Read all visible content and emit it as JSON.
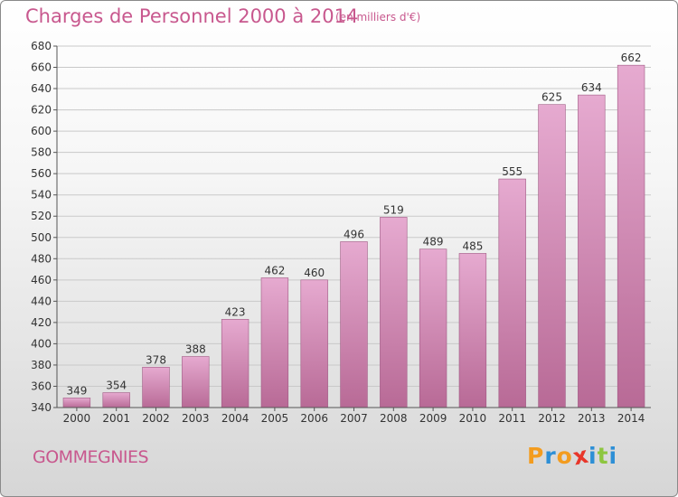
{
  "header": {
    "title": "Charges de Personnel 2000 à 2014",
    "subtitle": "(en milliers d'€)"
  },
  "footer": {
    "commune": "GOMMEGNIES",
    "logo": {
      "letters": [
        "P",
        "r",
        "o",
        "x",
        "i",
        "t",
        "i"
      ],
      "colors": [
        "#f39c1f",
        "#2d8fd6",
        "#f39c1f",
        "#e8362a",
        "#2d8fd6",
        "#8dc63f",
        "#2d8fd6"
      ]
    }
  },
  "colors": {
    "bar_light": "#e6aad0",
    "bar_dark": "#b86a96",
    "bar_edge": "#a05a84",
    "accent": "#c8588e"
  },
  "chart_data": {
    "type": "bar",
    "title": "Charges de Personnel 2000 à 2014",
    "subtitle": "(en milliers d'€)",
    "categories": [
      "2000",
      "2001",
      "2002",
      "2003",
      "2004",
      "2005",
      "2006",
      "2007",
      "2008",
      "2009",
      "2010",
      "2011",
      "2012",
      "2013",
      "2014"
    ],
    "values": [
      349,
      354,
      378,
      388,
      423,
      462,
      460,
      496,
      519,
      489,
      485,
      555,
      625,
      634,
      662
    ],
    "ylim": [
      340,
      680
    ],
    "yticks": [
      340,
      360,
      380,
      400,
      420,
      440,
      460,
      480,
      500,
      520,
      540,
      560,
      580,
      600,
      620,
      640,
      660,
      680
    ],
    "grid": true,
    "legend": "none"
  }
}
